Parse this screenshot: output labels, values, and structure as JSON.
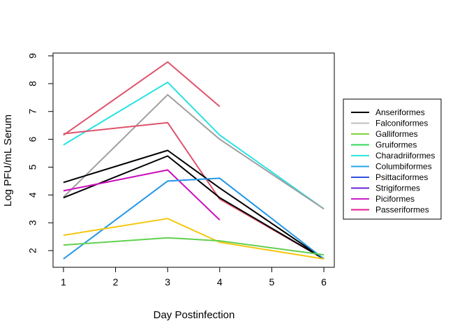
{
  "chart_data": {
    "type": "line",
    "title": "",
    "xlabel": "Day Postinfection",
    "ylabel": "Log PFU/mL Serum",
    "xlim": [
      0.8,
      6.2
    ],
    "ylim": [
      1.4,
      9.1
    ],
    "x_ticks": [
      1,
      2,
      3,
      4,
      5,
      6
    ],
    "y_ticks": [
      2,
      3,
      4,
      5,
      6,
      7,
      8,
      9
    ],
    "grid": false,
    "legend_position": "right",
    "legend": [
      {
        "name": "Anseriformes",
        "color": "#000000"
      },
      {
        "name": "Falconiformes",
        "color": "#bebebe"
      },
      {
        "name": "Galliformes",
        "color": "#7fd33a"
      },
      {
        "name": "Gruiformes",
        "color": "#2fd85a"
      },
      {
        "name": "Charadriiformes",
        "color": "#2ee6dc"
      },
      {
        "name": "Columbiformes",
        "color": "#2aa4e4"
      },
      {
        "name": "Psittaciformes",
        "color": "#2f4fe0"
      },
      {
        "name": "Strigiformes",
        "color": "#6a23d8"
      },
      {
        "name": "Piciformes",
        "color": "#c81ec8"
      },
      {
        "name": "Passeriformes",
        "color": "#e31a8f"
      }
    ],
    "lines": [
      {
        "color": "#df536b",
        "points": [
          [
            1,
            6.15
          ],
          [
            3,
            8.78
          ],
          [
            4,
            7.18
          ]
        ]
      },
      {
        "color": "#28e2e5",
        "points": [
          [
            1,
            5.8
          ],
          [
            3,
            8.05
          ],
          [
            4,
            6.15
          ],
          [
            6,
            3.5
          ]
        ]
      },
      {
        "color": "#9e9e9e",
        "points": [
          [
            1,
            3.92
          ],
          [
            3,
            7.6
          ],
          [
            4,
            6.0
          ],
          [
            6,
            3.5
          ]
        ]
      },
      {
        "color": "#df536b",
        "points": [
          [
            1,
            6.2
          ],
          [
            3,
            6.6
          ],
          [
            4,
            3.85
          ],
          [
            6,
            1.7
          ]
        ]
      },
      {
        "color": "#000000",
        "points": [
          [
            1,
            4.45
          ],
          [
            3,
            5.6
          ],
          [
            4,
            4.25
          ],
          [
            6,
            1.7
          ]
        ]
      },
      {
        "color": "#000000",
        "points": [
          [
            1,
            3.9
          ],
          [
            3,
            5.4
          ],
          [
            4,
            3.9
          ],
          [
            6,
            1.7
          ]
        ]
      },
      {
        "color": "#cd0bbc",
        "points": [
          [
            1,
            4.15
          ],
          [
            3,
            4.9
          ],
          [
            4,
            3.1
          ]
        ]
      },
      {
        "color": "#2297e6",
        "points": [
          [
            1,
            1.7
          ],
          [
            3,
            4.5
          ],
          [
            4,
            4.6
          ],
          [
            6,
            1.7
          ]
        ]
      },
      {
        "color": "#f5c710",
        "points": [
          [
            1,
            2.55
          ],
          [
            3,
            3.15
          ],
          [
            4,
            2.3
          ],
          [
            6,
            1.7
          ]
        ]
      },
      {
        "color": "#61d04f",
        "points": [
          [
            1,
            2.2
          ],
          [
            3,
            2.46
          ],
          [
            4,
            2.35
          ],
          [
            6,
            1.85
          ]
        ]
      }
    ]
  }
}
